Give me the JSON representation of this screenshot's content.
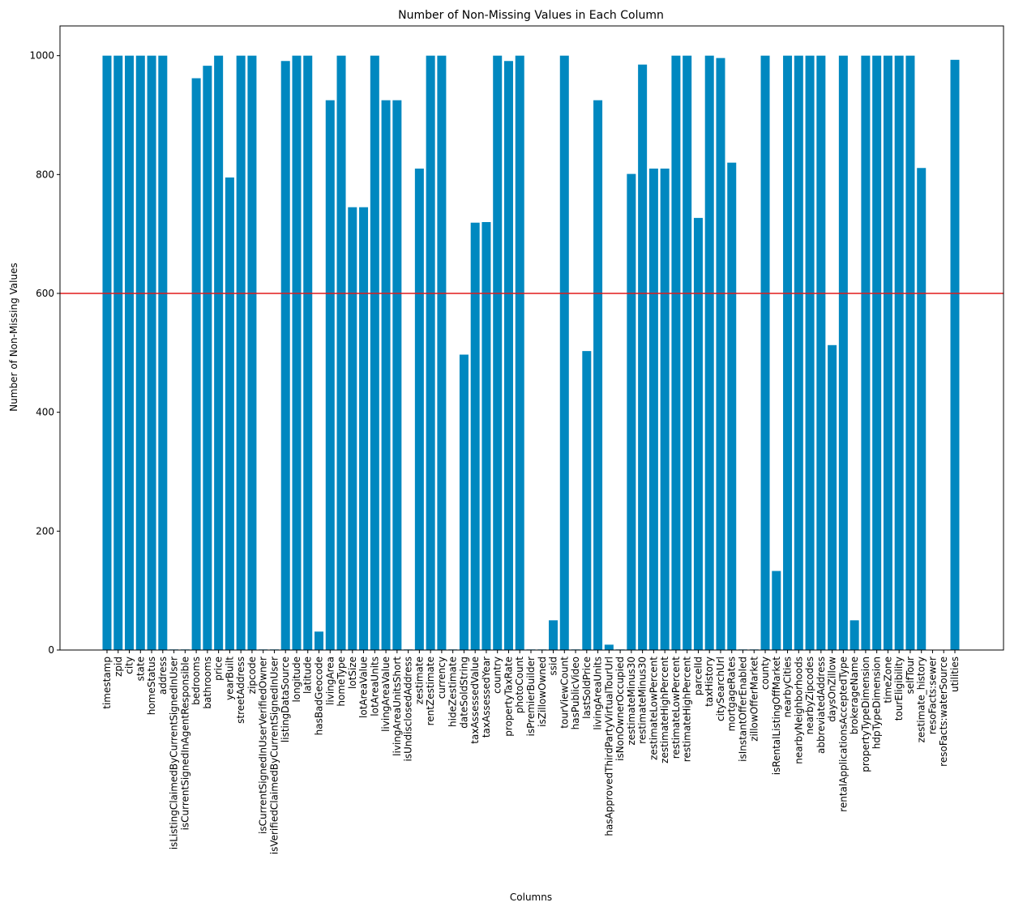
{
  "chart_data": {
    "type": "bar",
    "title": "Number of Non-Missing Values in Each Column",
    "xlabel": "Columns",
    "ylabel": "Number of Non-Missing Values",
    "ylim": [
      0,
      1050
    ],
    "yticks": [
      0,
      200,
      400,
      600,
      800,
      1000
    ],
    "grid": false,
    "bar_color": "#0088c0",
    "threshold_line": {
      "value": 600,
      "color": "#e01b1b"
    },
    "categories": [
      "timestamp",
      "zpid",
      "city",
      "state",
      "homeStatus",
      "address",
      "isListingClaimedByCurrentSignedInUser",
      "isCurrentSignedInAgentResponsible",
      "bedrooms",
      "bathrooms",
      "price",
      "yearBuilt",
      "streetAddress",
      "zipcode",
      "isCurrentSignedInUserVerifiedOwner",
      "isVerifiedClaimedByCurrentSignedInUser",
      "listingDataSource",
      "longitude",
      "latitude",
      "hasBadGeocode",
      "livingArea",
      "homeType",
      "lotSize",
      "lotAreaValue",
      "lotAreaUnits",
      "livingAreaValue",
      "livingAreaUnitsShort",
      "isUndisclosedAddress",
      "zestimate",
      "rentZestimate",
      "currency",
      "hideZestimate",
      "dateSoldString",
      "taxAssessedValue",
      "taxAssessedYear",
      "country",
      "propertyTaxRate",
      "photoCount",
      "isPremierBuilder",
      "isZillowOwned",
      "ssid",
      "tourViewCount",
      "hasPublicVideo",
      "lastSoldPrice",
      "livingAreaUnits",
      "hasApprovedThirdPartyVirtualTourUrl",
      "isNonOwnerOccupied",
      "zestimateMinus30",
      "restimateMinus30",
      "zestimateLowPercent",
      "zestimateHighPercent",
      "restimateLowPercent",
      "restimateHighPercent",
      "parcelId",
      "taxHistory",
      "citySearchUrl",
      "mortgageRates",
      "isInstantOfferEnabled",
      "zillowOfferMarket",
      "county",
      "isRentalListingOffMarket",
      "nearbyCities",
      "nearbyNeighborhoods",
      "nearbyZipcodes",
      "abbreviatedAddress",
      "daysOnZillow",
      "rentalApplicationsAcceptedType",
      "brokerageName",
      "propertyTypeDimension",
      "hdpTypeDimension",
      "timeZone",
      "tourEligibility",
      "selfTour",
      "zestimate_history",
      "resoFacts:sewer",
      "resoFacts:waterSource",
      "utilities"
    ],
    "values": [
      1000,
      1000,
      1000,
      1000,
      1000,
      1000,
      1,
      1,
      962,
      983,
      1000,
      795,
      1000,
      1000,
      1,
      1,
      991,
      1000,
      1000,
      31,
      925,
      1000,
      745,
      745,
      1000,
      925,
      925,
      1,
      810,
      1000,
      1000,
      1,
      497,
      719,
      720,
      1000,
      991,
      1000,
      1,
      1,
      50,
      1000,
      1,
      503,
      925,
      9,
      1,
      801,
      985,
      810,
      810,
      1000,
      1000,
      727,
      1000,
      996,
      820,
      1,
      1,
      1000,
      133,
      1000,
      1000,
      1000,
      1000,
      513,
      1000,
      50,
      1000,
      1000,
      1000,
      1000,
      1000,
      811,
      0,
      0,
      993
    ]
  }
}
